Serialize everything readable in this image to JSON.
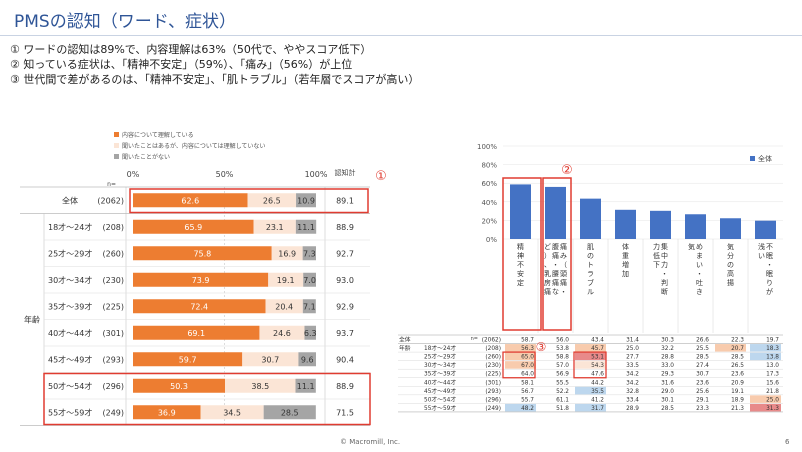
{
  "page": {
    "title": "PMSの認知（ワード、症状）",
    "points": [
      "①  ワードの認知は89%で、内容理解は63%（50代で、ややスコア低下）",
      "②  知っている症状は、「精神不安定」（59%）、「痛み」（56%）が上位",
      "③  世代間で差があるのは、「精神不安定」、「肌トラブル」（若年層でスコアが高い）"
    ],
    "footer": "© Macromill, Inc.",
    "page_number": "6"
  },
  "annotations": {
    "n1": "①",
    "n2": "②",
    "n3": "③"
  },
  "colors": {
    "understand": "#ed7d31",
    "heard": "#fbe5d6",
    "never": "#a5a5a5",
    "bar": "#4472c4"
  },
  "chart_data": [
    {
      "type": "bar",
      "orientation": "horizontal-stacked",
      "legend": [
        "内容について理解している",
        "聞いたことはあるが、内容については理解していない",
        "聞いたことがない"
      ],
      "axis_ticks": [
        "0%",
        "50%",
        "100%"
      ],
      "n_header": "n=",
      "awareness_header": "認知計",
      "group_label": "年齢",
      "rows": [
        {
          "label": "全体",
          "n": "(2062)",
          "values": [
            62.6,
            26.5,
            10.9
          ],
          "awareness": "89.1"
        },
        {
          "label": "18才～24才",
          "n": "(208)",
          "values": [
            65.9,
            23.1,
            11.1
          ],
          "awareness": "88.9"
        },
        {
          "label": "25才～29才",
          "n": "(260)",
          "values": [
            75.8,
            16.9,
            7.3
          ],
          "awareness": "92.7"
        },
        {
          "label": "30才～34才",
          "n": "(230)",
          "values": [
            73.9,
            19.1,
            7.0
          ],
          "awareness": "93.0"
        },
        {
          "label": "35才～39才",
          "n": "(225)",
          "values": [
            72.4,
            20.4,
            7.1
          ],
          "awareness": "92.9"
        },
        {
          "label": "40才～44才",
          "n": "(301)",
          "values": [
            69.1,
            24.6,
            6.3
          ],
          "awareness": "93.7"
        },
        {
          "label": "45才～49才",
          "n": "(293)",
          "values": [
            59.7,
            30.7,
            9.6
          ],
          "awareness": "90.4"
        },
        {
          "label": "50才～54才",
          "n": "(296)",
          "values": [
            50.3,
            38.5,
            11.1
          ],
          "awareness": "88.9"
        },
        {
          "label": "55才～59才",
          "n": "(249)",
          "values": [
            36.9,
            34.5,
            28.5
          ],
          "awareness": "71.5"
        }
      ]
    },
    {
      "type": "bar",
      "legend": [
        "全体"
      ],
      "y_ticks": [
        "100%",
        "80%",
        "60%",
        "40%",
        "20%",
        "0%"
      ],
      "ylim": [
        0,
        100
      ],
      "categories": [
        "精神不安定",
        "痛み（頭痛・腹痛・腰痛など）、乳房痛",
        "肌のトラブル",
        "体重増加",
        "集中力・判断力低下",
        "めまい・吐き気",
        "気分の高揚",
        "不眠・眠りが浅い"
      ],
      "values": [
        58.7,
        56.0,
        43.4,
        31.4,
        30.3,
        26.6,
        22.3,
        19.7
      ]
    },
    {
      "type": "table",
      "row_header": "全体",
      "group_label": "年齢",
      "n_header": "n=",
      "rows": [
        {
          "label": "全体",
          "n": "(2062)",
          "values": [
            "58.7",
            "56.0",
            "43.4",
            "31.4",
            "30.3",
            "26.6",
            "22.3",
            "19.7"
          ]
        },
        {
          "label": "18才～24才",
          "n": "(208)",
          "values": [
            "56.3",
            "53.8",
            "45.7",
            "25.0",
            "32.2",
            "25.5",
            "20.7",
            "18.3"
          ]
        },
        {
          "label": "25才～29才",
          "n": "(260)",
          "values": [
            "65.0",
            "58.8",
            "53.1",
            "27.7",
            "28.8",
            "28.5",
            "28.5",
            "13.8"
          ]
        },
        {
          "label": "30才～34才",
          "n": "(230)",
          "values": [
            "67.0",
            "57.0",
            "54.3",
            "33.5",
            "33.0",
            "27.4",
            "26.5",
            "13.0"
          ]
        },
        {
          "label": "35才～39才",
          "n": "(225)",
          "values": [
            "64.0",
            "56.9",
            "47.6",
            "34.2",
            "29.3",
            "30.7",
            "23.6",
            "17.3"
          ]
        },
        {
          "label": "40才～44才",
          "n": "(301)",
          "values": [
            "58.1",
            "55.5",
            "44.2",
            "34.2",
            "31.6",
            "23.6",
            "20.9",
            "15.6"
          ]
        },
        {
          "label": "45才～49才",
          "n": "(293)",
          "values": [
            "56.7",
            "52.2",
            "35.5",
            "32.8",
            "29.0",
            "25.6",
            "19.1",
            "21.8"
          ]
        },
        {
          "label": "50才～54才",
          "n": "(296)",
          "values": [
            "55.7",
            "61.1",
            "41.2",
            "33.4",
            "30.1",
            "29.1",
            "18.9",
            "25.0"
          ]
        },
        {
          "label": "55才～59才",
          "n": "(249)",
          "values": [
            "48.2",
            "51.8",
            "31.7",
            "28.9",
            "28.5",
            "23.3",
            "21.3",
            "31.3"
          ]
        }
      ],
      "highlights": {
        "2,0": "#f8cbad",
        "3,0": "#f8cbad",
        "4,0": "#f8cbad",
        "9,0": "#bdd7ee",
        "2,2": "#f8cbad",
        "3,2": "#e88a8a",
        "4,2": "#fbe5d6",
        "7,2": "#bdd7ee",
        "9,2": "#bdd7ee",
        "2,6": "#f8cbad",
        "2,7": "#bdd7ee",
        "3,7": "#bdd7ee",
        "8,7": "#f8cbad",
        "9,7": "#e88a8a"
      }
    }
  ]
}
